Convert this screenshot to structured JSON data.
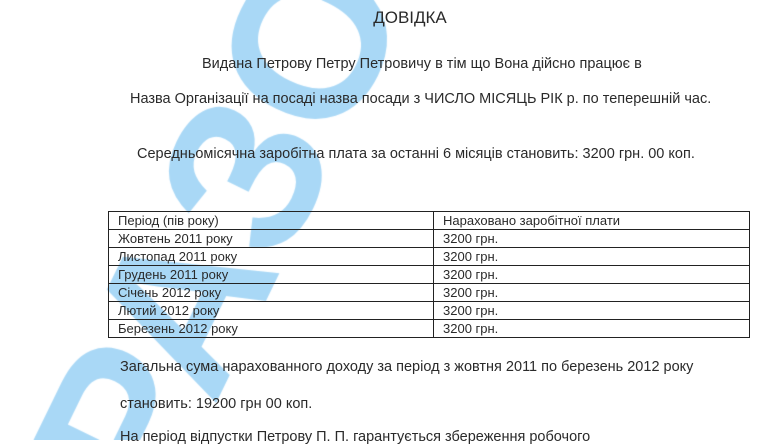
{
  "watermark": {
    "text": "ЗРАЗОК",
    "color": "#a9d8f6"
  },
  "document": {
    "title": "ДОВІДКА",
    "line1": "Видана Петрову Петру Петровичу в тім що Вона дійсно працює в",
    "line2": "Назва Організації на посаді назва посади з ЧИСЛО МІСЯЦЬ РІК р. по теперешній час.",
    "line3": "Середньомісячна заробітна плата за останні 6 місяців становить: 3200 грн. 00 коп.",
    "table": {
      "headers": [
        "Період (пів року)",
        "Нараховано заробітної плати"
      ],
      "rows": [
        [
          "Жовтень 2011 року",
          "3200 грн."
        ],
        [
          "Листопад 2011 року",
          "3200 грн."
        ],
        [
          "Грудень 2011 року",
          "3200 грн."
        ],
        [
          "Січень 2012 року",
          "3200 грн."
        ],
        [
          "Лютий 2012 року",
          "3200 грн."
        ],
        [
          "Березень 2012 року",
          "3200 грн."
        ]
      ]
    },
    "total_line1": "Загальна сума нарахованного доходу за період з жовтня 2011 по березень 2012 року",
    "total_line2": "становить: 19200 грн 00 коп.",
    "vacation_line": "На період відпустки Петрову П. П. гарантується збереження робочого"
  }
}
